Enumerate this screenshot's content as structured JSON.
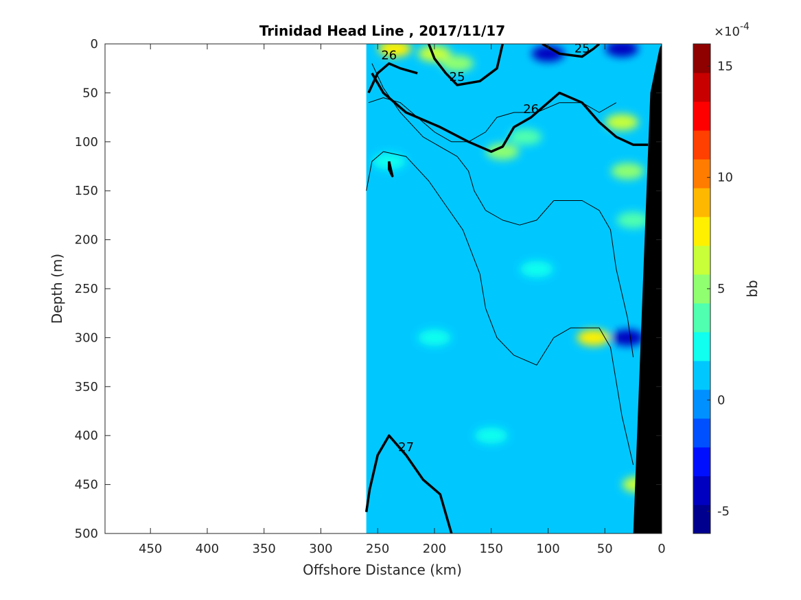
{
  "chart_data": {
    "type": "heatmap",
    "title": "Trinidad Head Line , 2017/11/17",
    "xlabel": "Offshore Distance (km)",
    "ylabel": "Depth (m)",
    "xlim": [
      490,
      0
    ],
    "ylim": [
      0,
      500
    ],
    "x_reversed": true,
    "y_reversed": true,
    "xticks": [
      450,
      400,
      350,
      300,
      250,
      200,
      150,
      100,
      50,
      0
    ],
    "yticks": [
      0,
      50,
      100,
      150,
      200,
      250,
      300,
      350,
      400,
      450,
      500
    ],
    "colorbar": {
      "label": "bb",
      "multiplier": "×10",
      "exponent": "-4",
      "range": [
        -6,
        16
      ],
      "ticks": [
        -5,
        0,
        5,
        10,
        15
      ],
      "colors": [
        "#00008F",
        "#0000C0",
        "#0010FF",
        "#0050FF",
        "#0090FF",
        "#00C8FF",
        "#10FFEF",
        "#50FFAF",
        "#90FF70",
        "#C8FF38",
        "#FFF000",
        "#FFB800",
        "#FF7C00",
        "#FF4000",
        "#FF0000",
        "#C80000",
        "#8F0000"
      ]
    },
    "data_extent_km": [
      260,
      0
    ],
    "background_value": 0.5,
    "anomalies": [
      {
        "x": 235,
        "y": 5,
        "value": 7.0
      },
      {
        "x": 200,
        "y": 10,
        "value": 6.5
      },
      {
        "x": 180,
        "y": 20,
        "value": 5.0
      },
      {
        "x": 140,
        "y": 110,
        "value": 5.5
      },
      {
        "x": 120,
        "y": 95,
        "value": 4.0
      },
      {
        "x": 35,
        "y": 80,
        "value": 6.5
      },
      {
        "x": 30,
        "y": 130,
        "value": 5.0
      },
      {
        "x": 25,
        "y": 180,
        "value": 3.5
      },
      {
        "x": 60,
        "y": 300,
        "value": 8.0
      },
      {
        "x": 30,
        "y": 300,
        "value": -4.5
      },
      {
        "x": 110,
        "y": 230,
        "value": 2.5
      },
      {
        "x": 200,
        "y": 300,
        "value": 2.5
      },
      {
        "x": 20,
        "y": 450,
        "value": 6.0
      },
      {
        "x": 100,
        "y": 10,
        "value": -3.5
      },
      {
        "x": 35,
        "y": 5,
        "value": -4.0
      },
      {
        "x": 240,
        "y": 120,
        "value": 2.0
      },
      {
        "x": 150,
        "y": 400,
        "value": 2.0
      }
    ],
    "bathymetry_km_at_depth": [
      {
        "depth": 0,
        "x": 0
      },
      {
        "depth": 500,
        "x": 0
      },
      {
        "depth": 500,
        "x": 25
      },
      {
        "depth": 50,
        "x": 10
      },
      {
        "depth": 5,
        "x": 2
      }
    ],
    "contours": [
      {
        "label": "26",
        "bold": true,
        "points": [
          [
            258,
            50
          ],
          [
            250,
            30
          ],
          [
            240,
            20
          ],
          [
            230,
            25
          ],
          [
            215,
            30
          ]
        ]
      },
      {
        "label": "25",
        "bold": true,
        "points": [
          [
            205,
            0
          ],
          [
            200,
            15
          ],
          [
            190,
            30
          ],
          [
            180,
            42
          ],
          [
            160,
            38
          ],
          [
            145,
            25
          ],
          [
            140,
            0
          ]
        ]
      },
      {
        "label": "25",
        "bold": true,
        "points": [
          [
            105,
            0
          ],
          [
            90,
            10
          ],
          [
            70,
            13
          ],
          [
            60,
            5
          ],
          [
            55,
            0
          ]
        ]
      },
      {
        "label": "26",
        "bold": true,
        "points": [
          [
            255,
            30
          ],
          [
            245,
            50
          ],
          [
            225,
            70
          ],
          [
            195,
            85
          ],
          [
            170,
            100
          ],
          [
            150,
            110
          ],
          [
            140,
            105
          ],
          [
            130,
            85
          ],
          [
            115,
            75
          ],
          [
            100,
            60
          ],
          [
            90,
            50
          ],
          [
            70,
            60
          ],
          [
            55,
            80
          ],
          [
            40,
            95
          ],
          [
            25,
            103
          ],
          [
            12,
            103
          ]
        ]
      },
      {
        "label": "",
        "bold": true,
        "points": [
          [
            240,
            120
          ],
          [
            238,
            130
          ],
          [
            237,
            135
          ],
          [
            240,
            128
          ],
          [
            240,
            120
          ]
        ]
      },
      {
        "label": "27",
        "bold": true,
        "points": [
          [
            260,
            478
          ],
          [
            257,
            455
          ],
          [
            250,
            420
          ],
          [
            240,
            400
          ],
          [
            225,
            420
          ],
          [
            210,
            445
          ],
          [
            195,
            460
          ],
          [
            190,
            480
          ],
          [
            185,
            500
          ]
        ]
      },
      {
        "label": "",
        "bold": false,
        "points": [
          [
            255,
            20
          ],
          [
            245,
            45
          ],
          [
            230,
            70
          ],
          [
            210,
            95
          ],
          [
            180,
            115
          ],
          [
            170,
            130
          ],
          [
            165,
            150
          ],
          [
            155,
            170
          ],
          [
            140,
            180
          ],
          [
            125,
            185
          ],
          [
            110,
            180
          ],
          [
            95,
            160
          ],
          [
            70,
            160
          ],
          [
            55,
            170
          ],
          [
            45,
            190
          ],
          [
            40,
            230
          ],
          [
            30,
            280
          ],
          [
            25,
            320
          ]
        ]
      },
      {
        "label": "",
        "bold": false,
        "points": [
          [
            260,
            150
          ],
          [
            255,
            120
          ],
          [
            245,
            110
          ],
          [
            225,
            115
          ],
          [
            205,
            140
          ],
          [
            190,
            165
          ],
          [
            175,
            190
          ],
          [
            160,
            235
          ],
          [
            155,
            270
          ],
          [
            145,
            300
          ],
          [
            130,
            318
          ],
          [
            110,
            328
          ],
          [
            95,
            300
          ],
          [
            80,
            290
          ],
          [
            55,
            290
          ],
          [
            45,
            310
          ],
          [
            35,
            380
          ],
          [
            25,
            430
          ]
        ]
      },
      {
        "label": "",
        "bold": false,
        "points": [
          [
            258,
            60
          ],
          [
            245,
            55
          ],
          [
            230,
            60
          ],
          [
            215,
            75
          ],
          [
            200,
            90
          ],
          [
            185,
            100
          ],
          [
            170,
            100
          ],
          [
            155,
            90
          ],
          [
            145,
            75
          ],
          [
            130,
            70
          ],
          [
            110,
            70
          ],
          [
            90,
            60
          ],
          [
            70,
            60
          ],
          [
            55,
            70
          ],
          [
            40,
            60
          ]
        ]
      }
    ]
  }
}
